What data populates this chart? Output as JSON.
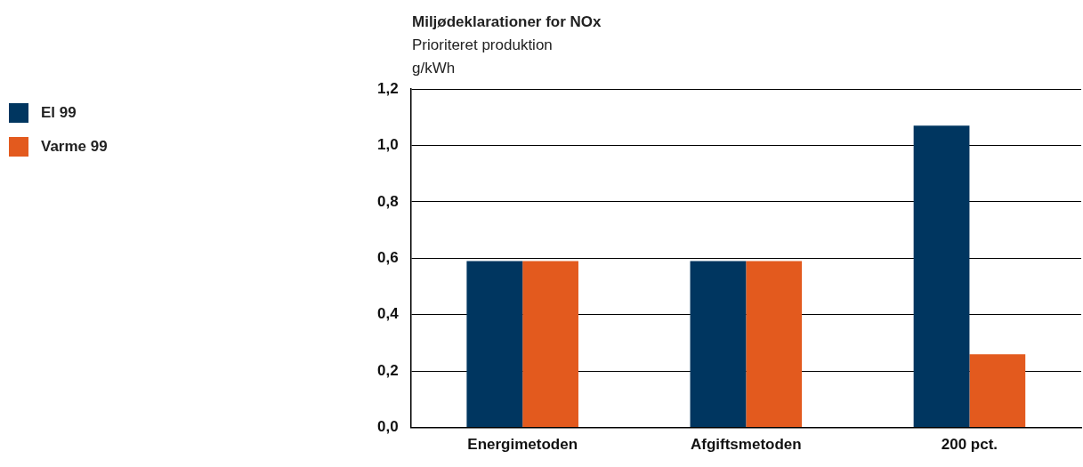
{
  "chart_data": {
    "type": "bar",
    "title": "Miljødeklarationer for NOx",
    "subtitle": "Prioriteret produktion",
    "ylabel": "g/kWh",
    "categories": [
      "Energimetoden",
      "Afgiftsmetoden",
      "200 pct."
    ],
    "series": [
      {
        "name": "El 99",
        "color": "#003660",
        "values": [
          0.59,
          0.59,
          1.07
        ]
      },
      {
        "name": "Varme 99",
        "color": "#e35a1e",
        "values": [
          0.59,
          0.59,
          0.26
        ]
      }
    ],
    "ylim": [
      0,
      1.2
    ],
    "yticks": [
      {
        "value": 0,
        "label": "0,0"
      },
      {
        "value": 0.2,
        "label": "0,2"
      },
      {
        "value": 0.4,
        "label": "0,4"
      },
      {
        "value": 0.6,
        "label": "0,6"
      },
      {
        "value": 0.8,
        "label": "0,8"
      },
      {
        "value": 1,
        "label": "1,0"
      },
      {
        "value": 1.2,
        "label": "1,2"
      }
    ],
    "grid": "y",
    "legend": "left"
  }
}
